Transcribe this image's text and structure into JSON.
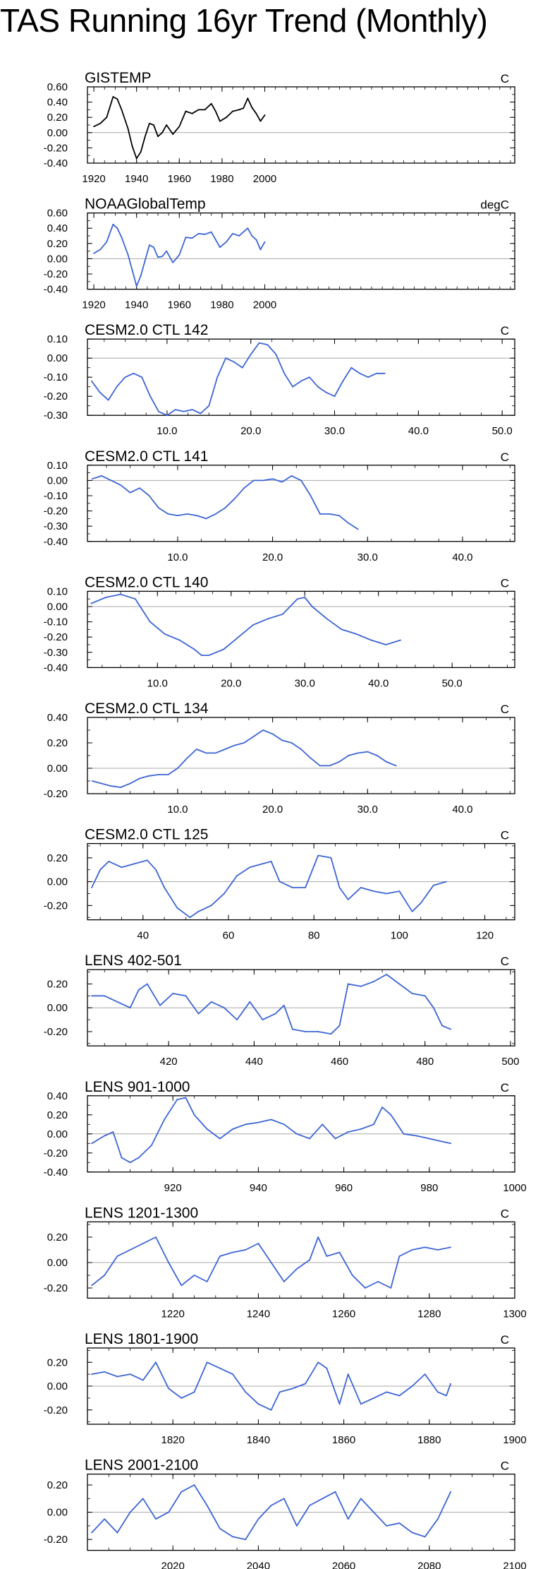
{
  "title": "TAS Running 16yr Trend (Monthly)",
  "colors": {
    "black": "#000000",
    "blue": "#3d65d4",
    "zero": "#a8a8a8"
  },
  "chart_data": [
    {
      "type": "line",
      "title": "GISTEMP",
      "units": "C",
      "color": "black",
      "xlim": [
        1917,
        2117
      ],
      "ylim": [
        -0.4,
        0.6
      ],
      "xticks": [
        1920,
        1940,
        1960,
        1980,
        2000
      ],
      "xticklabels": [
        "1920",
        "1940",
        "1960",
        "1980",
        "2000"
      ],
      "yticks": [
        -0.4,
        -0.2,
        0.0,
        0.2,
        0.4,
        0.6
      ],
      "yticklabels": [
        "-0.40",
        "-0.20",
        "0.00",
        "0.20",
        "0.40",
        "0.60"
      ],
      "x": [
        1920,
        1923,
        1926,
        1929,
        1931,
        1933,
        1936,
        1938,
        1940,
        1942,
        1944,
        1946,
        1948,
        1950,
        1952,
        1954,
        1957,
        1960,
        1963,
        1966,
        1969,
        1972,
        1975,
        1977,
        1979,
        1982,
        1985,
        1988,
        1990,
        1992,
        1994,
        1996,
        1998,
        2000
      ],
      "y": [
        0.08,
        0.12,
        0.2,
        0.47,
        0.44,
        0.3,
        0.05,
        -0.18,
        -0.34,
        -0.25,
        -0.05,
        0.12,
        0.1,
        -0.05,
        0.0,
        0.1,
        -0.02,
        0.08,
        0.28,
        0.25,
        0.3,
        0.3,
        0.38,
        0.28,
        0.15,
        0.2,
        0.28,
        0.3,
        0.32,
        0.45,
        0.33,
        0.25,
        0.15,
        0.23
      ]
    },
    {
      "type": "line",
      "title": "NOAAGlobalTemp",
      "units": "degC",
      "color": "blue",
      "xlim": [
        1917,
        2117
      ],
      "ylim": [
        -0.4,
        0.6
      ],
      "xticks": [
        1920,
        1940,
        1960,
        1980,
        2000
      ],
      "xticklabels": [
        "1920",
        "1940",
        "1960",
        "1980",
        "2000"
      ],
      "yticks": [
        -0.4,
        -0.2,
        0.0,
        0.2,
        0.4,
        0.6
      ],
      "yticklabels": [
        "-0.40",
        "-0.20",
        "0.00",
        "0.20",
        "0.40",
        "0.60"
      ],
      "x": [
        1920,
        1923,
        1926,
        1929,
        1931,
        1933,
        1936,
        1938,
        1940,
        1942,
        1944,
        1946,
        1948,
        1950,
        1952,
        1954,
        1957,
        1960,
        1963,
        1966,
        1969,
        1972,
        1975,
        1977,
        1979,
        1982,
        1985,
        1988,
        1990,
        1992,
        1994,
        1996,
        1998,
        2000
      ],
      "y": [
        0.07,
        0.12,
        0.22,
        0.45,
        0.4,
        0.28,
        0.05,
        -0.15,
        -0.36,
        -0.22,
        -0.02,
        0.18,
        0.15,
        0.02,
        0.03,
        0.1,
        -0.05,
        0.05,
        0.28,
        0.27,
        0.33,
        0.32,
        0.35,
        0.25,
        0.15,
        0.22,
        0.33,
        0.3,
        0.35,
        0.4,
        0.3,
        0.25,
        0.12,
        0.22
      ]
    },
    {
      "type": "line",
      "title": "CESM2.0 CTL 142",
      "units": "C",
      "color": "blue",
      "xlim": [
        0.5,
        51.5
      ],
      "ylim": [
        -0.3,
        0.1
      ],
      "xticks": [
        10,
        20,
        30,
        40,
        50
      ],
      "xticklabels": [
        "10.0",
        "20.0",
        "30.0",
        "40.0",
        "50.0"
      ],
      "yticks": [
        -0.3,
        -0.2,
        -0.1,
        0.0,
        0.1
      ],
      "yticklabels": [
        "-0.30",
        "-0.20",
        "-0.10",
        "0.00",
        "0.10"
      ],
      "x": [
        1,
        2,
        3,
        4,
        5,
        6,
        7,
        8,
        9,
        10,
        11,
        12,
        13,
        14,
        15,
        16,
        17,
        18,
        19,
        20,
        21,
        22,
        23,
        24,
        25,
        26,
        27,
        28,
        29,
        30,
        31,
        32,
        33,
        34,
        35,
        36
      ],
      "y": [
        -0.12,
        -0.18,
        -0.22,
        -0.15,
        -0.1,
        -0.08,
        -0.1,
        -0.2,
        -0.28,
        -0.3,
        -0.27,
        -0.28,
        -0.27,
        -0.29,
        -0.25,
        -0.1,
        0.0,
        -0.02,
        -0.05,
        0.02,
        0.08,
        0.07,
        0.02,
        -0.08,
        -0.15,
        -0.12,
        -0.1,
        -0.15,
        -0.18,
        -0.2,
        -0.12,
        -0.05,
        -0.08,
        -0.1,
        -0.08,
        -0.08
      ]
    },
    {
      "type": "line",
      "title": "CESM2.0 CTL 141",
      "units": "C",
      "color": "blue",
      "xlim": [
        0.5,
        45.5
      ],
      "ylim": [
        -0.4,
        0.1
      ],
      "xticks": [
        10,
        20,
        30,
        40
      ],
      "xticklabels": [
        "10.0",
        "20.0",
        "30.0",
        "40.0"
      ],
      "yticks": [
        -0.4,
        -0.3,
        -0.2,
        -0.1,
        0.0,
        0.1
      ],
      "yticklabels": [
        "-0.40",
        "-0.30",
        "-0.20",
        "-0.10",
        "0.00",
        "0.10"
      ],
      "x": [
        1,
        2,
        3,
        4,
        5,
        6,
        7,
        8,
        9,
        10,
        11,
        12,
        13,
        14,
        15,
        16,
        17,
        18,
        19,
        20,
        21,
        22,
        23,
        24,
        25,
        26,
        27,
        28,
        29
      ],
      "y": [
        0.01,
        0.03,
        0.0,
        -0.03,
        -0.08,
        -0.05,
        -0.1,
        -0.18,
        -0.22,
        -0.23,
        -0.22,
        -0.23,
        -0.25,
        -0.22,
        -0.18,
        -0.12,
        -0.05,
        0.0,
        0.0,
        0.01,
        -0.01,
        0.03,
        0.0,
        -0.1,
        -0.22,
        -0.22,
        -0.23,
        -0.28,
        -0.32
      ]
    },
    {
      "type": "line",
      "title": "CESM2.0 CTL 140",
      "units": "C",
      "color": "blue",
      "xlim": [
        0.5,
        58.5
      ],
      "ylim": [
        -0.4,
        0.1
      ],
      "xticks": [
        10,
        20,
        30,
        40,
        50
      ],
      "xticklabels": [
        "10.0",
        "20.0",
        "30.0",
        "40.0",
        "50.0"
      ],
      "yticks": [
        -0.4,
        -0.3,
        -0.2,
        -0.1,
        0.0,
        0.1
      ],
      "yticklabels": [
        "-0.40",
        "-0.30",
        "-0.20",
        "-0.10",
        "0.00",
        "0.10"
      ],
      "x": [
        1,
        3,
        5,
        7,
        9,
        11,
        13,
        15,
        16,
        17,
        19,
        21,
        23,
        25,
        27,
        29,
        30,
        31,
        33,
        35,
        37,
        39,
        41,
        43
      ],
      "y": [
        0.02,
        0.06,
        0.08,
        0.05,
        -0.1,
        -0.18,
        -0.22,
        -0.28,
        -0.32,
        -0.32,
        -0.28,
        -0.2,
        -0.12,
        -0.08,
        -0.05,
        0.05,
        0.06,
        0.0,
        -0.08,
        -0.15,
        -0.18,
        -0.22,
        -0.25,
        -0.22
      ]
    },
    {
      "type": "line",
      "title": "CESM2.0 CTL 134",
      "units": "C",
      "color": "blue",
      "xlim": [
        0.5,
        45.5
      ],
      "ylim": [
        -0.2,
        0.4
      ],
      "xticks": [
        10,
        20,
        30,
        40
      ],
      "xticklabels": [
        "10.0",
        "20.0",
        "30.0",
        "40.0"
      ],
      "yticks": [
        -0.2,
        0.0,
        0.2,
        0.4
      ],
      "yticklabels": [
        "-0.20",
        "0.00",
        "0.20",
        "0.40"
      ],
      "x": [
        1,
        2,
        3,
        4,
        5,
        6,
        7,
        8,
        9,
        10,
        11,
        12,
        13,
        14,
        15,
        16,
        17,
        18,
        19,
        20,
        21,
        22,
        23,
        24,
        25,
        26,
        27,
        28,
        29,
        30,
        31,
        32,
        33
      ],
      "y": [
        -0.1,
        -0.12,
        -0.14,
        -0.15,
        -0.12,
        -0.08,
        -0.06,
        -0.05,
        -0.05,
        0.0,
        0.08,
        0.15,
        0.12,
        0.12,
        0.15,
        0.18,
        0.2,
        0.25,
        0.3,
        0.27,
        0.22,
        0.2,
        0.15,
        0.08,
        0.02,
        0.02,
        0.05,
        0.1,
        0.12,
        0.13,
        0.1,
        0.05,
        0.02
      ]
    },
    {
      "type": "line",
      "title": "CESM2.0 CTL 125",
      "units": "C",
      "color": "blue",
      "xlim": [
        27,
        127
      ],
      "ylim": [
        -0.32,
        0.32
      ],
      "xticks": [
        40,
        60,
        80,
        100,
        120
      ],
      "xticklabels": [
        "40",
        "60",
        "80",
        "100",
        "120"
      ],
      "yticks": [
        -0.2,
        0.0,
        0.2
      ],
      "yticklabels": [
        "-0.20",
        "0.00",
        "0.20"
      ],
      "x": [
        28,
        30,
        32,
        35,
        38,
        41,
        43,
        45,
        48,
        51,
        53,
        56,
        59,
        62,
        65,
        68,
        70,
        72,
        75,
        78,
        81,
        84,
        86,
        88,
        91,
        94,
        97,
        100,
        103,
        105,
        108,
        111
      ],
      "y": [
        -0.05,
        0.1,
        0.17,
        0.12,
        0.15,
        0.18,
        0.1,
        -0.05,
        -0.22,
        -0.3,
        -0.25,
        -0.2,
        -0.1,
        0.05,
        0.12,
        0.15,
        0.17,
        0.0,
        -0.05,
        -0.05,
        0.22,
        0.2,
        -0.05,
        -0.15,
        -0.05,
        -0.08,
        -0.1,
        -0.08,
        -0.25,
        -0.18,
        -0.03,
        0.0
      ]
    },
    {
      "type": "line",
      "title": "LENS 402-501",
      "units": "C",
      "color": "blue",
      "xlim": [
        401,
        501
      ],
      "ylim": [
        -0.32,
        0.32
      ],
      "xticks": [
        420,
        440,
        460,
        480,
        500
      ],
      "xticklabels": [
        "420",
        "440",
        "460",
        "480",
        "500"
      ],
      "yticks": [
        -0.2,
        0.0,
        0.2
      ],
      "yticklabels": [
        "-0.20",
        "0.00",
        "0.20"
      ],
      "x": [
        402,
        405,
        408,
        411,
        413,
        415,
        418,
        421,
        424,
        427,
        430,
        433,
        436,
        439,
        442,
        445,
        447,
        449,
        452,
        455,
        458,
        460,
        462,
        465,
        468,
        471,
        474,
        477,
        480,
        482,
        484,
        486
      ],
      "y": [
        0.1,
        0.1,
        0.05,
        0.0,
        0.15,
        0.2,
        0.02,
        0.12,
        0.1,
        -0.05,
        0.05,
        0.0,
        -0.1,
        0.05,
        -0.1,
        -0.05,
        0.02,
        -0.18,
        -0.2,
        -0.2,
        -0.22,
        -0.15,
        0.2,
        0.18,
        0.22,
        0.28,
        0.2,
        0.12,
        0.1,
        0.0,
        -0.15,
        -0.18
      ]
    },
    {
      "type": "line",
      "title": "LENS 901-1000",
      "units": "C",
      "color": "blue",
      "xlim": [
        900,
        1000
      ],
      "ylim": [
        -0.4,
        0.4
      ],
      "xticks": [
        920,
        940,
        960,
        980,
        1000
      ],
      "xticklabels": [
        "920",
        "940",
        "960",
        "980",
        "1000"
      ],
      "yticks": [
        -0.4,
        -0.2,
        0.0,
        0.2,
        0.4
      ],
      "yticklabels": [
        "-0.40",
        "-0.20",
        "0.00",
        "0.20",
        "0.40"
      ],
      "x": [
        901,
        904,
        906,
        908,
        910,
        912,
        915,
        918,
        921,
        923,
        925,
        928,
        931,
        934,
        937,
        940,
        943,
        946,
        949,
        952,
        955,
        958,
        961,
        964,
        967,
        969,
        971,
        974,
        977,
        980,
        983,
        985
      ],
      "y": [
        -0.1,
        -0.02,
        0.02,
        -0.25,
        -0.3,
        -0.25,
        -0.12,
        0.15,
        0.36,
        0.38,
        0.2,
        0.05,
        -0.05,
        0.05,
        0.1,
        0.12,
        0.15,
        0.1,
        0.0,
        -0.05,
        0.1,
        -0.05,
        0.02,
        0.05,
        0.1,
        0.28,
        0.2,
        0.0,
        -0.02,
        -0.05,
        -0.08,
        -0.1
      ]
    },
    {
      "type": "line",
      "title": "LENS 1201-1300",
      "units": "C",
      "color": "blue",
      "xlim": [
        1200,
        1300
      ],
      "ylim": [
        -0.28,
        0.32
      ],
      "xticks": [
        1220,
        1240,
        1260,
        1280,
        1300
      ],
      "xticklabels": [
        "1220",
        "1240",
        "1260",
        "1280",
        "1300"
      ],
      "yticks": [
        -0.2,
        0.0,
        0.2
      ],
      "yticklabels": [
        "-0.20",
        "0.00",
        "0.20"
      ],
      "x": [
        1201,
        1204,
        1207,
        1210,
        1213,
        1216,
        1219,
        1222,
        1225,
        1228,
        1231,
        1234,
        1237,
        1240,
        1243,
        1246,
        1249,
        1252,
        1254,
        1256,
        1259,
        1262,
        1265,
        1268,
        1271,
        1273,
        1276,
        1279,
        1282,
        1285
      ],
      "y": [
        -0.18,
        -0.1,
        0.05,
        0.1,
        0.15,
        0.2,
        0.0,
        -0.18,
        -0.1,
        -0.15,
        0.05,
        0.08,
        0.1,
        0.15,
        0.0,
        -0.15,
        -0.05,
        0.02,
        0.2,
        0.05,
        0.08,
        -0.1,
        -0.2,
        -0.15,
        -0.2,
        0.05,
        0.1,
        0.12,
        0.1,
        0.12
      ]
    },
    {
      "type": "line",
      "title": "LENS 1801-1900",
      "units": "C",
      "color": "blue",
      "xlim": [
        1800,
        1900
      ],
      "ylim": [
        -0.32,
        0.32
      ],
      "xticks": [
        1820,
        1840,
        1860,
        1880,
        1900
      ],
      "xticklabels": [
        "1820",
        "1840",
        "1860",
        "1880",
        "1900"
      ],
      "yticks": [
        -0.2,
        0.0,
        0.2
      ],
      "yticklabels": [
        "-0.20",
        "0.00",
        "0.20"
      ],
      "x": [
        1801,
        1804,
        1807,
        1810,
        1813,
        1816,
        1819,
        1822,
        1825,
        1828,
        1831,
        1834,
        1837,
        1840,
        1843,
        1845,
        1848,
        1851,
        1854,
        1856,
        1859,
        1861,
        1864,
        1867,
        1870,
        1873,
        1876,
        1879,
        1882,
        1884,
        1885
      ],
      "y": [
        0.1,
        0.12,
        0.08,
        0.1,
        0.05,
        0.2,
        -0.02,
        -0.1,
        -0.05,
        0.2,
        0.15,
        0.1,
        -0.05,
        -0.15,
        -0.2,
        -0.05,
        -0.02,
        0.02,
        0.2,
        0.15,
        -0.15,
        0.1,
        -0.15,
        -0.1,
        -0.05,
        -0.08,
        0.0,
        0.1,
        -0.05,
        -0.08,
        0.02
      ]
    },
    {
      "type": "line",
      "title": "LENS 2001-2100",
      "units": "C",
      "color": "blue",
      "xlim": [
        2000,
        2100
      ],
      "ylim": [
        -0.28,
        0.28
      ],
      "xticks": [
        2020,
        2040,
        2060,
        2080,
        2100
      ],
      "xticklabels": [
        "2020",
        "2040",
        "2060",
        "2080",
        "2100"
      ],
      "yticks": [
        -0.2,
        0.0,
        0.2
      ],
      "yticklabels": [
        "-0.20",
        "0.00",
        "0.20"
      ],
      "x": [
        2001,
        2004,
        2007,
        2010,
        2013,
        2016,
        2019,
        2022,
        2025,
        2028,
        2031,
        2034,
        2037,
        2040,
        2043,
        2046,
        2049,
        2052,
        2055,
        2058,
        2061,
        2064,
        2067,
        2070,
        2073,
        2076,
        2079,
        2082,
        2085
      ],
      "y": [
        -0.15,
        -0.05,
        -0.15,
        0.0,
        0.1,
        -0.05,
        0.0,
        0.15,
        0.2,
        0.05,
        -0.12,
        -0.18,
        -0.2,
        -0.05,
        0.05,
        0.1,
        -0.1,
        0.05,
        0.1,
        0.15,
        -0.05,
        0.1,
        0.0,
        -0.1,
        -0.08,
        -0.15,
        -0.18,
        -0.05,
        0.15
      ]
    }
  ]
}
